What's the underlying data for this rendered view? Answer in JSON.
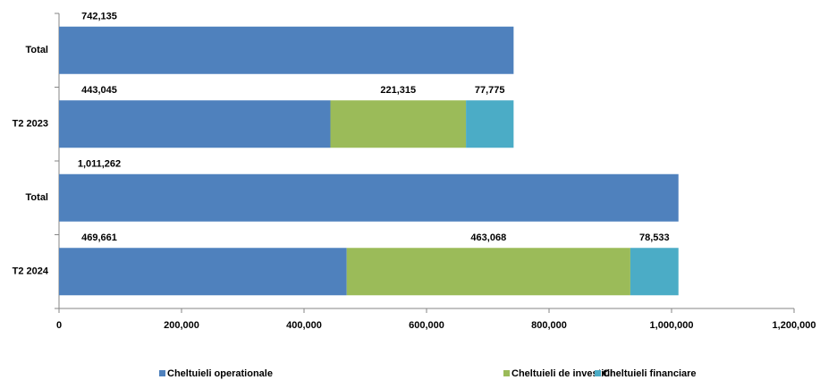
{
  "chart_data": {
    "type": "stacked-bar-horizontal",
    "categories": [
      "Total",
      "T2 2023",
      "Total",
      "T2 2024"
    ],
    "series": [
      {
        "name": "Cheltuieli operationale",
        "color": "#4f81bd",
        "values": [
          742135,
          443045,
          1011262,
          469661
        ],
        "value_labels": [
          "742,135",
          "443,045",
          "1,011,262",
          "469,661"
        ]
      },
      {
        "name": "Cheltuieli de investitii",
        "color": "#9bbb59",
        "values": [
          null,
          221315,
          null,
          463068
        ],
        "value_labels": [
          null,
          "221,315",
          null,
          "463,068"
        ]
      },
      {
        "name": "Cheltuieli financiare",
        "color": "#4bacc6",
        "values": [
          null,
          77775,
          null,
          78533
        ],
        "value_labels": [
          null,
          "77,775",
          null,
          "78,533"
        ]
      }
    ],
    "xlim": [
      0,
      1200000
    ],
    "xticks": [
      0,
      {
        "value": 200000,
        "label": "200,000"
      },
      {
        "value": 400000,
        "label": "400,000"
      },
      {
        "value": 600000,
        "label": "600,000"
      },
      {
        "value": 800000,
        "label": "800,000"
      },
      {
        "value": 1000000,
        "label": "1,000,000"
      },
      {
        "value": 1200000,
        "label": "1,200,000"
      }
    ],
    "legend": "bottom"
  }
}
